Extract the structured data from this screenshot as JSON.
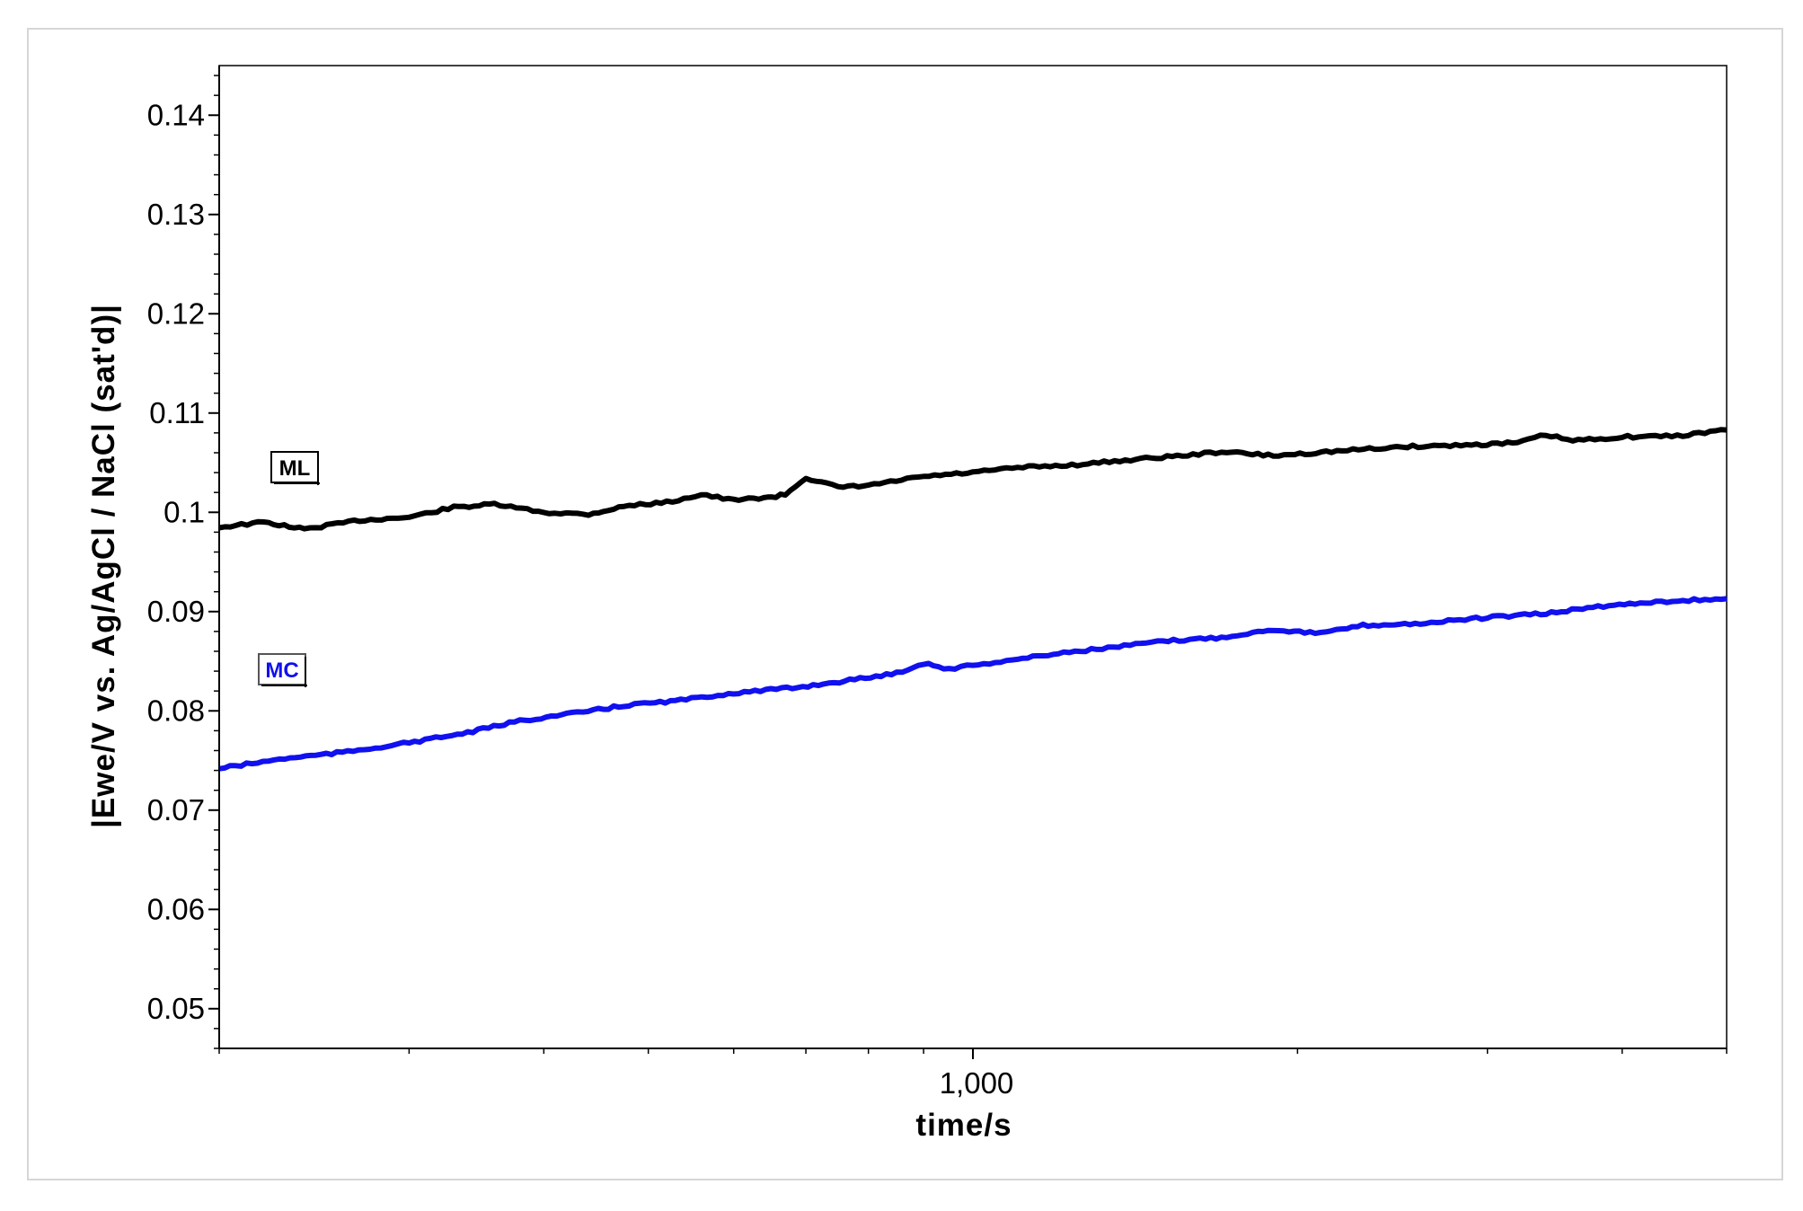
{
  "chart_data": {
    "type": "line",
    "title": "",
    "xlabel": "time/s",
    "ylabel": "|Ewe/V vs. Ag/AgCl / NaCl (sat'd)|",
    "x_scale": "log",
    "xlim": [
      200,
      5000
    ],
    "ylim": [
      0.046,
      0.145
    ],
    "x_ticks": [
      {
        "value": 1000,
        "label": "1,000"
      }
    ],
    "y_ticks": [
      {
        "value": 0.05,
        "label": "0.05"
      },
      {
        "value": 0.06,
        "label": "0.06"
      },
      {
        "value": 0.07,
        "label": "0.07"
      },
      {
        "value": 0.08,
        "label": "0.08"
      },
      {
        "value": 0.09,
        "label": "0.09"
      },
      {
        "value": 0.1,
        "label": "0.1"
      },
      {
        "value": 0.11,
        "label": "0.11"
      },
      {
        "value": 0.12,
        "label": "0.12"
      },
      {
        "value": 0.13,
        "label": "0.13"
      },
      {
        "value": 0.14,
        "label": "0.14"
      }
    ],
    "grid": false,
    "series": [
      {
        "name": "ML",
        "color": "#000000",
        "x": [
          200,
          220,
          240,
          270,
          300,
          330,
          360,
          400,
          440,
          480,
          520,
          560,
          600,
          640,
          650,
          670,
          700,
          750,
          800,
          900,
          1000,
          1100,
          1250,
          1400,
          1600,
          1700,
          1900,
          2200,
          2500,
          2900,
          3200,
          3400,
          3600,
          4000,
          4500,
          5000
        ],
        "y": [
          0.0985,
          0.099,
          0.0983,
          0.0992,
          0.0995,
          0.1005,
          0.1008,
          0.1,
          0.0998,
          0.1007,
          0.101,
          0.1018,
          0.1012,
          0.1015,
          0.1015,
          0.1018,
          0.1035,
          0.1025,
          0.1027,
          0.1036,
          0.104,
          0.1045,
          0.1048,
          0.1053,
          0.1058,
          0.1061,
          0.1057,
          0.1062,
          0.1066,
          0.1068,
          0.107,
          0.1078,
          0.1072,
          0.1076,
          0.1077,
          0.1083
        ]
      },
      {
        "name": "MC",
        "color": "#1010f0",
        "x": [
          200,
          230,
          260,
          300,
          340,
          380,
          430,
          480,
          530,
          600,
          680,
          760,
          850,
          900,
          950,
          1000,
          1100,
          1200,
          1350,
          1500,
          1700,
          1900,
          2100,
          2300,
          2600,
          3000,
          3400,
          3800,
          4300,
          5000
        ],
        "y": [
          0.0742,
          0.0752,
          0.0758,
          0.0768,
          0.0778,
          0.079,
          0.0798,
          0.0806,
          0.081,
          0.0818,
          0.0823,
          0.083,
          0.0838,
          0.0848,
          0.0842,
          0.0846,
          0.0852,
          0.0858,
          0.0864,
          0.087,
          0.0874,
          0.0882,
          0.0878,
          0.0886,
          0.0888,
          0.0894,
          0.0898,
          0.0905,
          0.091,
          0.0913
        ]
      }
    ],
    "legend": "inline labels at left"
  }
}
